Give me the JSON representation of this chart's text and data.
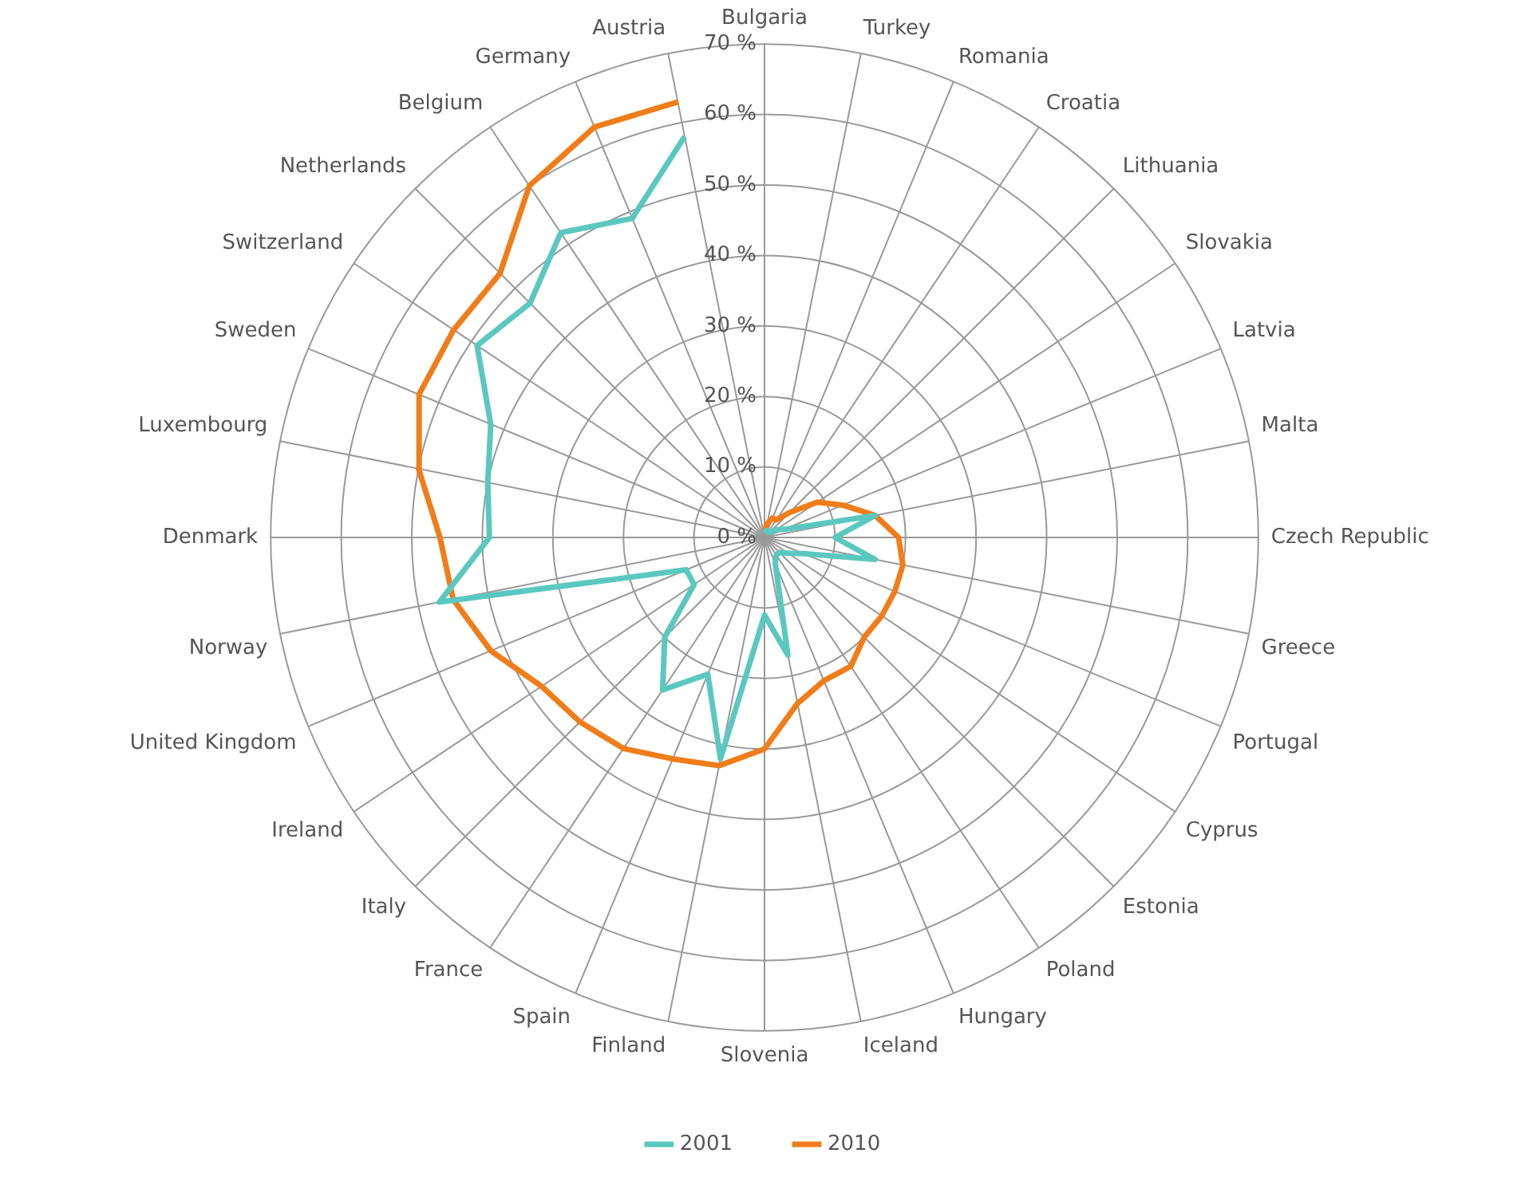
{
  "chart_data": {
    "type": "radar",
    "categories": [
      "Bulgaria",
      "Turkey",
      "Romania",
      "Croatia",
      "Lithuania",
      "Slovakia",
      "Latvia",
      "Malta",
      "Czech Republic",
      "Greece",
      "Portugal",
      "Cyprus",
      "Estonia",
      "Poland",
      "Hungary",
      "Iceland",
      "Slovenia",
      "Finland",
      "Spain",
      "France",
      "Italy",
      "Ireland",
      "United Kingdom",
      "Norway",
      "Denmark",
      "Luxembourg",
      "Sweden",
      "Switzerland",
      "Netherlands",
      "Belgium",
      "Germany",
      "Austria"
    ],
    "series": [
      {
        "name": "2001",
        "color": "#5bc8c0",
        "values": [
          1,
          1,
          1,
          1,
          1,
          2,
          3,
          16,
          10,
          16,
          6,
          4,
          3,
          3,
          4,
          17,
          11,
          32,
          21,
          26,
          20,
          12,
          12,
          47,
          39,
          40,
          42,
          49,
          47,
          52,
          49,
          58
        ]
      },
      {
        "name": "2010",
        "color": "#f07d1a",
        "values": [
          1,
          2,
          3,
          3,
          5,
          9,
          12,
          16,
          19,
          20,
          20,
          20,
          20,
          22,
          22,
          24,
          30,
          33,
          34,
          36,
          37,
          38,
          42,
          45,
          46,
          50,
          53,
          53,
          53,
          60,
          63,
          63
        ]
      }
    ],
    "ylim": [
      0,
      70
    ],
    "yticks": [
      {
        "value": 0,
        "label": "0 %"
      },
      {
        "value": 10,
        "label": "10 %"
      },
      {
        "value": 20,
        "label": "20 %"
      },
      {
        "value": 30,
        "label": "30 %"
      },
      {
        "value": 40,
        "label": "40 %"
      },
      {
        "value": 50,
        "label": "50 %"
      },
      {
        "value": 60,
        "label": "60 %"
      },
      {
        "value": 70,
        "label": "70 %"
      }
    ],
    "grid": true,
    "legend": "bottom",
    "marker": "none",
    "line_style": "solid"
  }
}
